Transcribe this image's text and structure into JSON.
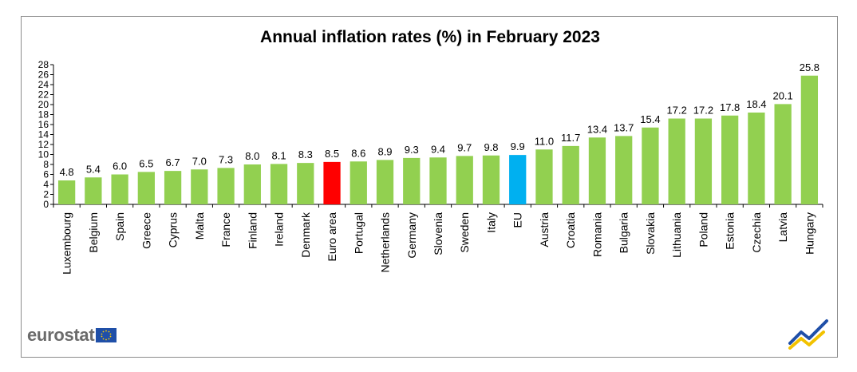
{
  "title": "Annual inflation rates (%) in February 2023",
  "logo_text": "eurostat",
  "colors": {
    "default_bar": "#92d050",
    "euro_area_bar": "#ff0000",
    "eu_bar": "#00b0f0",
    "logo_text": "#6b6b6b",
    "flag_blue": "#1f4fa8",
    "flag_stars": "#ffcc00"
  },
  "icons": [
    "eu-flag-icon",
    "eurostat-mark-icon"
  ],
  "chart_data": {
    "type": "bar",
    "title": "Annual inflation rates (%) in February 2023",
    "xlabel": "",
    "ylabel": "",
    "ylim": [
      0,
      28
    ],
    "yticks": [
      0,
      2,
      4,
      6,
      8,
      10,
      12,
      14,
      16,
      18,
      20,
      22,
      24,
      26,
      28
    ],
    "grid": false,
    "data_labels": true,
    "categories": [
      "Luxembourg",
      "Belgium",
      "Spain",
      "Greece",
      "Cyprus",
      "Malta",
      "France",
      "Finland",
      "Ireland",
      "Denmark",
      "Euro area",
      "Portugal",
      "Netherlands",
      "Germany",
      "Slovenia",
      "Sweden",
      "Italy",
      "EU",
      "Austria",
      "Croatia",
      "Romania",
      "Bulgaria",
      "Slovakia",
      "Lithuania",
      "Poland",
      "Estonia",
      "Czechia",
      "Latvia",
      "Hungary"
    ],
    "values": [
      4.8,
      5.4,
      6.0,
      6.5,
      6.7,
      7.0,
      7.3,
      8.0,
      8.1,
      8.3,
      8.5,
      8.6,
      8.9,
      9.3,
      9.4,
      9.7,
      9.8,
      9.9,
      11.0,
      11.7,
      13.4,
      13.7,
      15.4,
      17.2,
      17.2,
      17.8,
      18.4,
      20.1,
      25.8
    ],
    "labels": [
      "4.8",
      "5.4",
      "6.0",
      "6.5",
      "6.7",
      "7.0",
      "7.3",
      "8.0",
      "8.1",
      "8.3",
      "8.5",
      "8.6",
      "8.9",
      "9.3",
      "9.4",
      "9.7",
      "9.8",
      "9.9",
      "11.0",
      "11.7",
      "13.4",
      "13.7",
      "15.4",
      "17.2",
      "17.2",
      "17.8",
      "18.4",
      "20.1",
      "25.8"
    ],
    "highlights": {
      "Euro area": "#ff0000",
      "EU": "#00b0f0"
    }
  }
}
